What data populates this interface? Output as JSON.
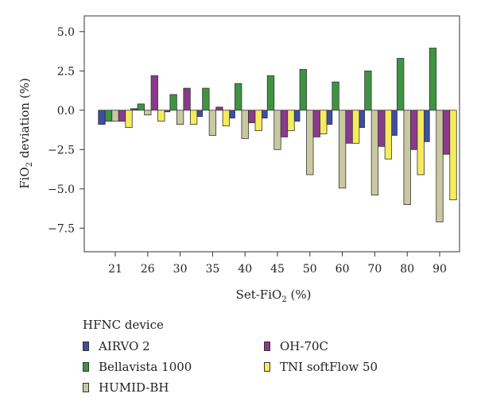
{
  "chart_data": {
    "type": "bar",
    "title": "",
    "xlabel_prefix": "Set-FiO",
    "xlabel_sub": "2",
    "xlabel_suffix": " (%)",
    "ylabel_prefix": "FiO",
    "ylabel_sub": "2",
    "ylabel_suffix": " deviation (%)",
    "categories": [
      "21",
      "26",
      "30",
      "35",
      "40",
      "45",
      "50",
      "60",
      "70",
      "80",
      "90"
    ],
    "ylim": [
      -9.0,
      6.0
    ],
    "yticks": [
      5.0,
      2.5,
      0.0,
      -2.5,
      -5.0,
      -7.5
    ],
    "ytick_labels": [
      "5.0",
      "2.5",
      "0.0",
      "−2.5",
      "−5.0",
      "−7.5"
    ],
    "grid": false,
    "legend_title": "HFNC device",
    "legend_position": "bottom",
    "series": [
      {
        "name": "AIRVO 2",
        "color": "#3b4fa3",
        "values": [
          -0.9,
          0.1,
          -0.1,
          -0.4,
          -0.5,
          -0.5,
          -0.7,
          -0.9,
          -1.1,
          -1.6,
          -2.0
        ]
      },
      {
        "name": "Bellavista 1000",
        "color": "#3f9442",
        "values": [
          -0.7,
          0.4,
          1.0,
          1.4,
          1.7,
          2.2,
          2.6,
          1.8,
          2.5,
          3.3,
          3.95
        ]
      },
      {
        "name": "HUMID-BH",
        "color": "#c9c9a0",
        "values": [
          -0.7,
          -0.3,
          -0.9,
          -1.6,
          -1.8,
          -2.5,
          -4.1,
          -4.95,
          -5.4,
          -6.0,
          -7.1
        ]
      },
      {
        "name": "OH-70C",
        "color": "#8b3a8b",
        "values": [
          -0.7,
          2.2,
          1.4,
          0.2,
          -0.8,
          -1.7,
          -1.7,
          -2.1,
          -2.3,
          -2.5,
          -2.8
        ]
      },
      {
        "name": "TNI softFlow 50",
        "color": "#f5ec5c",
        "values": [
          -1.1,
          -0.7,
          -0.9,
          -1.0,
          -1.3,
          -1.3,
          -1.5,
          -2.1,
          -3.1,
          -4.1,
          -5.7
        ]
      }
    ]
  }
}
